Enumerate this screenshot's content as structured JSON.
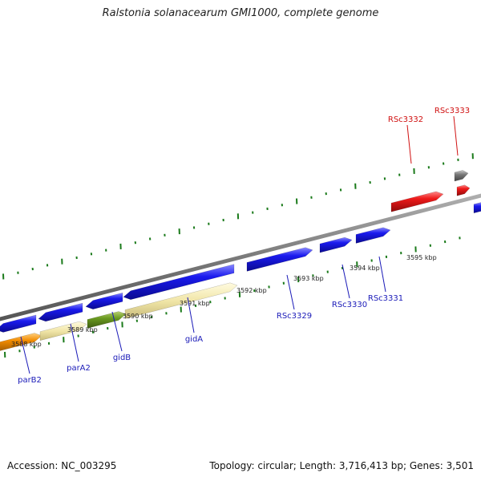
{
  "title": "Ralstonia solanacearum GMI1000, complete genome",
  "footer": {
    "accession": "Accession: NC_003295",
    "summary": "Topology: circular; Length: 3,716,413 bp; Genes: 3,501"
  },
  "colors": {
    "forward_gene": "#1515e0",
    "reverse_gene": "#e01515",
    "backbone": "#808080",
    "tick": "#1a7a1a",
    "label_forward": "#1a1ab8",
    "label_reverse": "#d01010"
  },
  "kbp_labels": [
    "3588 kbp",
    "3589 kbp",
    "3590 kbp",
    "3591 kbp",
    "3592 kbp",
    "3593 kbp",
    "3594 kbp",
    "3595 kbp"
  ],
  "gene_labels": {
    "forward": [
      "parB2",
      "parA2",
      "gidB",
      "gidA",
      "RSc3329",
      "RSc3330",
      "RSc3331"
    ],
    "reverse": [
      "RSc3332",
      "RSc3333"
    ]
  }
}
